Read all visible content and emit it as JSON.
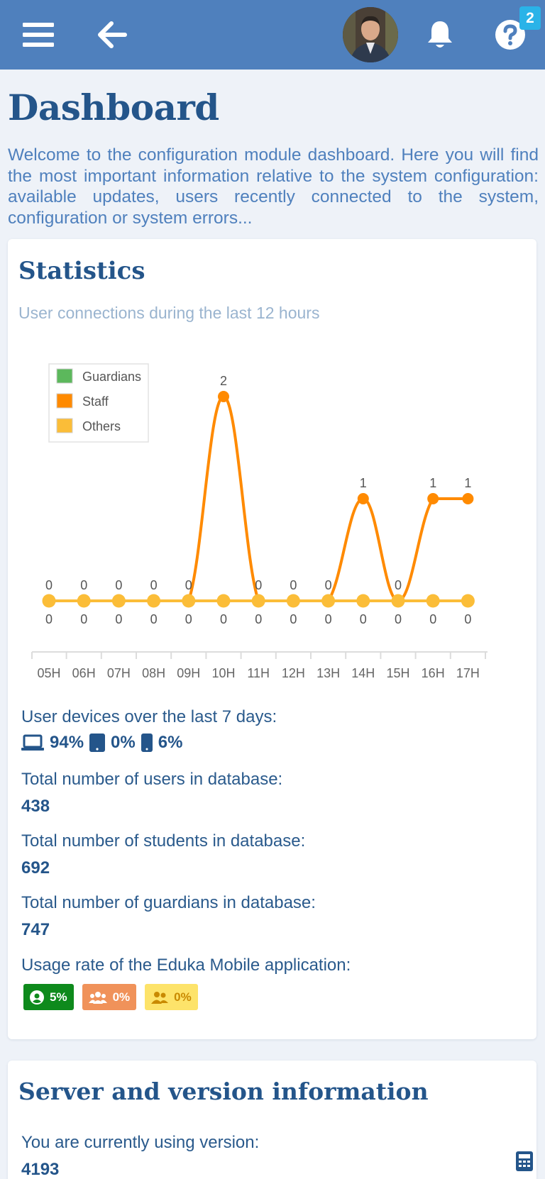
{
  "header": {
    "menu_icon": "hamburger-menu-icon",
    "back_icon": "arrow-left-icon",
    "notification_icon": "bell-icon",
    "help_icon": "question-circle-icon",
    "help_badge": "2",
    "bar_color": "#4f80bd",
    "badge_color": "#2ab3e8"
  },
  "page": {
    "title": "Dashboard",
    "intro": "Welcome to the configuration module dashboard. Here you will find the most important information relative to the system configuration: available updates, users recently connected to the system, configuration or system errors..."
  },
  "statistics": {
    "title": "Statistics",
    "subtitle": "User connections during the last 12 hours",
    "devices_label": "User devices over the last 7 days:",
    "devices": [
      {
        "icon": "laptop-icon",
        "value": "94%"
      },
      {
        "icon": "tablet-icon",
        "value": "0%"
      },
      {
        "icon": "smartphone-icon",
        "value": "6%"
      }
    ],
    "users_label": "Total number of users in database:",
    "users_value": "438",
    "students_label": "Total number of students in database:",
    "students_value": "692",
    "guardians_label": "Total number of guardians in database:",
    "guardians_value": "747",
    "usage_label": "Usage rate of the Eduka Mobile application:",
    "usage": [
      {
        "icon": "user-circle-icon",
        "value": "5%",
        "bg": "#0e8a1c",
        "fg": "#ffffff"
      },
      {
        "icon": "users-group-icon",
        "value": "0%",
        "bg": "#f0925a",
        "fg": "#ffffff"
      },
      {
        "icon": "user-pair-icon",
        "value": "0%",
        "bg": "#fde36a",
        "fg": "#c98a00"
      }
    ]
  },
  "chart_data": {
    "type": "line",
    "categories": [
      "05H",
      "06H",
      "07H",
      "08H",
      "09H",
      "10H",
      "11H",
      "12H",
      "13H",
      "14H",
      "15H",
      "16H",
      "17H"
    ],
    "series": [
      {
        "name": "Guardians",
        "color": "#5cb85c",
        "values": [
          0,
          0,
          0,
          0,
          0,
          0,
          0,
          0,
          0,
          0,
          0,
          0,
          0
        ]
      },
      {
        "name": "Staff",
        "color": "#ff8a00",
        "values": [
          0,
          0,
          0,
          0,
          0,
          2,
          0,
          0,
          0,
          1,
          0,
          1,
          1
        ]
      },
      {
        "name": "Others",
        "color": "#fbbd38",
        "values": [
          0,
          0,
          0,
          0,
          0,
          0,
          0,
          0,
          0,
          0,
          0,
          0,
          0
        ]
      }
    ],
    "ylim": [
      0,
      2
    ],
    "legend": "top-left",
    "grid": false
  },
  "server": {
    "title": "Server and version information",
    "version_label": "You are currently using version:",
    "version_value": "4193",
    "calc_icon": "calculator-icon"
  }
}
